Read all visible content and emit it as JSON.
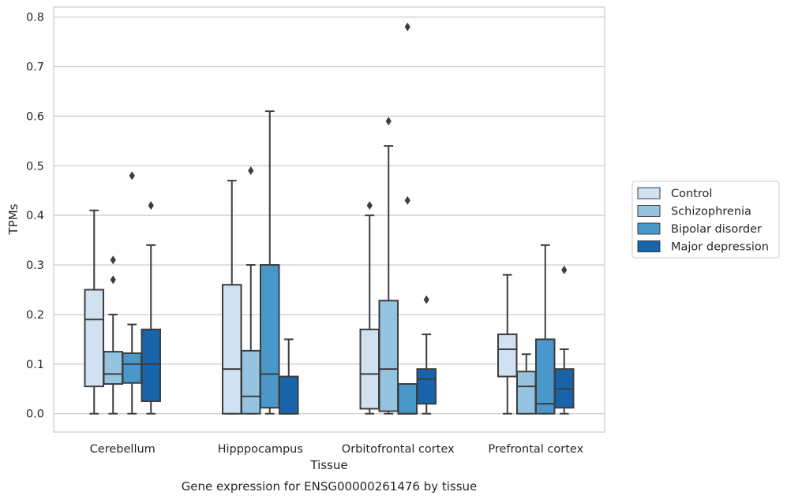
{
  "chart_data": {
    "type": "box",
    "caption": "Gene expression for ENSG00000261476 by tissue",
    "xlabel": "Tissue",
    "ylabel": "TPMs",
    "ylim": [
      -0.037,
      0.82
    ],
    "yticks": [
      0.0,
      0.1,
      0.2,
      0.3,
      0.4,
      0.5,
      0.6,
      0.7,
      0.8
    ],
    "ytick_labels": [
      "0.0",
      "0.1",
      "0.2",
      "0.3",
      "0.4",
      "0.5",
      "0.6",
      "0.7",
      "0.8"
    ],
    "grid": true,
    "legend_position": "right, outside plot",
    "categories": [
      "Cerebellum",
      "Hipppocampus",
      "Orbitofrontal cortex",
      "Prefrontal cortex"
    ],
    "series": [
      {
        "name": "Control",
        "color": "#d0e1f2",
        "boxes": [
          {
            "whisker_low": 0.0,
            "q1": 0.055,
            "median": 0.19,
            "q3": 0.25,
            "whisker_high": 0.41,
            "outliers": []
          },
          {
            "whisker_low": 0.0,
            "q1": 0.0,
            "median": 0.09,
            "q3": 0.26,
            "whisker_high": 0.47,
            "outliers": []
          },
          {
            "whisker_low": 0.0,
            "q1": 0.01,
            "median": 0.08,
            "q3": 0.17,
            "whisker_high": 0.4,
            "outliers": [
              0.42
            ]
          },
          {
            "whisker_low": 0.0,
            "q1": 0.075,
            "median": 0.13,
            "q3": 0.16,
            "whisker_high": 0.28,
            "outliers": []
          }
        ]
      },
      {
        "name": "Schizophrenia",
        "color": "#94c4df",
        "boxes": [
          {
            "whisker_low": 0.0,
            "q1": 0.06,
            "median": 0.08,
            "q3": 0.125,
            "whisker_high": 0.2,
            "outliers": [
              0.27,
              0.31
            ]
          },
          {
            "whisker_low": 0.0,
            "q1": 0.0,
            "median": 0.035,
            "q3": 0.127,
            "whisker_high": 0.3,
            "outliers": [
              0.49
            ]
          },
          {
            "whisker_low": 0.0,
            "q1": 0.005,
            "median": 0.09,
            "q3": 0.228,
            "whisker_high": 0.54,
            "outliers": [
              0.59
            ]
          },
          {
            "whisker_low": 0.0,
            "q1": 0.0,
            "median": 0.055,
            "q3": 0.085,
            "whisker_high": 0.12,
            "outliers": []
          }
        ]
      },
      {
        "name": "Bipolar disorder",
        "color": "#4a98c9",
        "boxes": [
          {
            "whisker_low": 0.0,
            "q1": 0.062,
            "median": 0.1,
            "q3": 0.122,
            "whisker_high": 0.18,
            "outliers": [
              0.48
            ]
          },
          {
            "whisker_low": 0.0,
            "q1": 0.012,
            "median": 0.08,
            "q3": 0.3,
            "whisker_high": 0.61,
            "outliers": []
          },
          {
            "whisker_low": 0.0,
            "q1": 0.0,
            "median": 0.0,
            "q3": 0.06,
            "whisker_high": 0.06,
            "outliers": [
              0.43,
              0.78
            ]
          },
          {
            "whisker_low": 0.0,
            "q1": 0.0,
            "median": 0.02,
            "q3": 0.15,
            "whisker_high": 0.34,
            "outliers": []
          }
        ]
      },
      {
        "name": "Major depression",
        "color": "#1764ab",
        "boxes": [
          {
            "whisker_low": 0.0,
            "q1": 0.025,
            "median": 0.1,
            "q3": 0.17,
            "whisker_high": 0.34,
            "outliers": [
              0.42
            ]
          },
          {
            "whisker_low": 0.0,
            "q1": 0.0,
            "median": 0.0,
            "q3": 0.075,
            "whisker_high": 0.15,
            "outliers": []
          },
          {
            "whisker_low": 0.0,
            "q1": 0.02,
            "median": 0.07,
            "q3": 0.09,
            "whisker_high": 0.16,
            "outliers": [
              0.23
            ]
          },
          {
            "whisker_low": 0.0,
            "q1": 0.012,
            "median": 0.05,
            "q3": 0.09,
            "whisker_high": 0.13,
            "outliers": [
              0.29
            ]
          }
        ]
      }
    ]
  }
}
